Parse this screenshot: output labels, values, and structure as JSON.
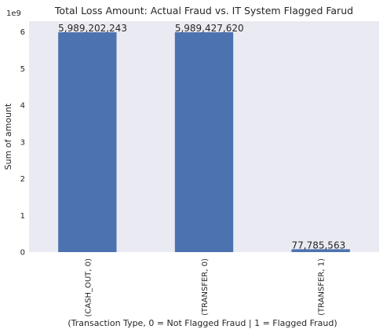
{
  "chart_data": {
    "type": "bar",
    "title": "Total Loss Amount: Actual Fraud vs. IT System Flagged Farud",
    "xlabel": "(Transaction Type, 0 = Not Flagged Fraud | 1 = Flagged Fraud)",
    "ylabel": "Sum of amount",
    "y_multiplier_label": "1e9",
    "categories": [
      "(CASH_OUT, 0)",
      "(TRANSFER, 0)",
      "(TRANSFER, 1)"
    ],
    "values": [
      5989202243,
      5989427620,
      77785563
    ],
    "data_labels": [
      "5,989,202,243",
      "5,989,427,620",
      "77,785,563"
    ],
    "y_ticks": [
      0,
      1,
      2,
      3,
      4,
      5,
      6
    ],
    "ylim": [
      0,
      6.29
    ],
    "y_scale": 1000000000,
    "grid": false,
    "colors": {
      "bar": "#4c72b0",
      "plot_bg": "#eaeaf2",
      "text": "#262626"
    }
  }
}
